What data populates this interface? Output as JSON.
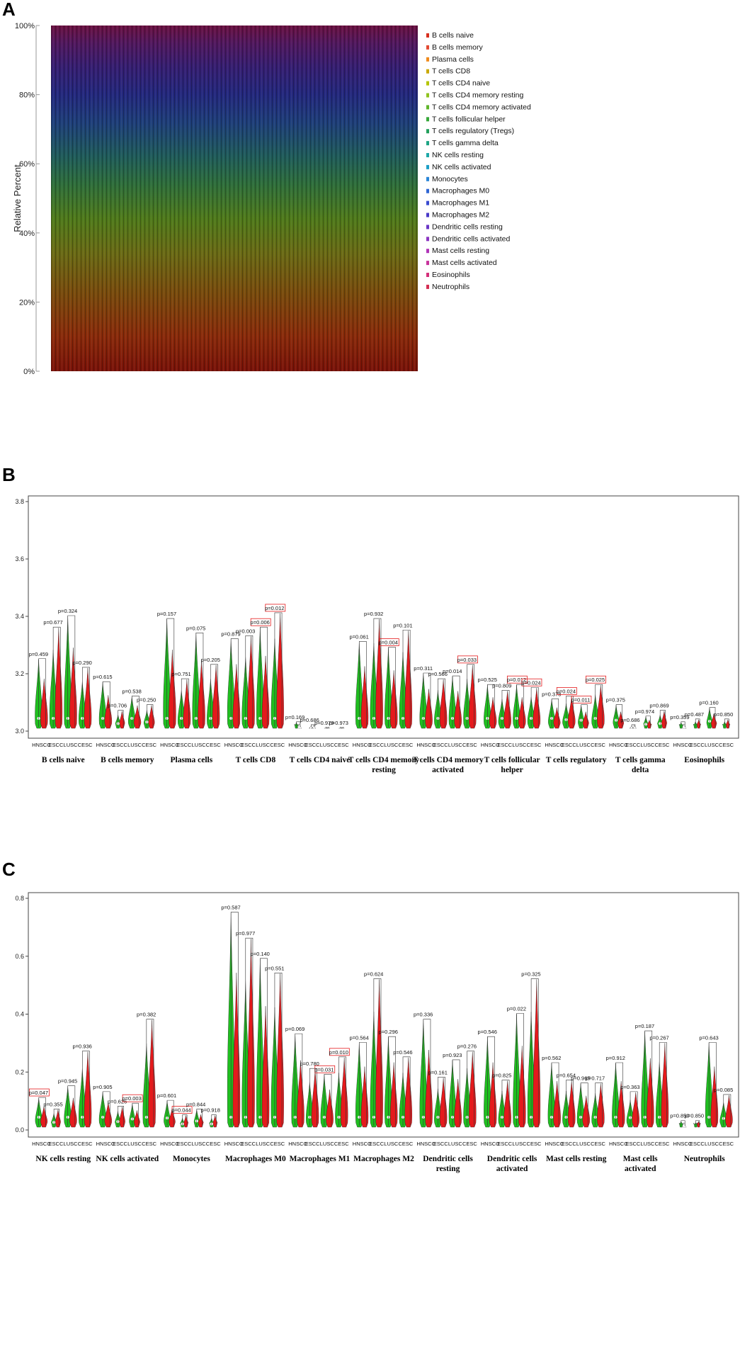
{
  "panels": {
    "a": "A",
    "b": "B",
    "c": "C"
  },
  "chart_data": [
    {
      "type": "area",
      "panel": "A",
      "ylabel": "Relative Percent",
      "yticks": [
        "0%",
        "20%",
        "40%",
        "60%",
        "80%",
        "100%"
      ],
      "ylim": [
        0,
        100
      ],
      "stacking": "percent",
      "legend_position": "right",
      "legend": [
        {
          "name": "B cells naive",
          "color": "#d7301f"
        },
        {
          "name": "B cells memory",
          "color": "#e34a33"
        },
        {
          "name": "Plasma cells",
          "color": "#f08a1c"
        },
        {
          "name": "T cells CD8",
          "color": "#c9a800"
        },
        {
          "name": "T cells CD4 naive",
          "color": "#b4c400"
        },
        {
          "name": "T cells CD4 memory resting",
          "color": "#8fc31f"
        },
        {
          "name": "T cells CD4 memory activated",
          "color": "#5fb62a"
        },
        {
          "name": "T cells follicular helper",
          "color": "#37a83a"
        },
        {
          "name": "T cells regulatory (Tregs)",
          "color": "#23a05c"
        },
        {
          "name": "T cells gamma delta",
          "color": "#1ea584"
        },
        {
          "name": "NK cells resting",
          "color": "#1fa8a8"
        },
        {
          "name": "NK cells activated",
          "color": "#1c9fc6"
        },
        {
          "name": "Monocytes",
          "color": "#2a86d8"
        },
        {
          "name": "Macrophages M0",
          "color": "#2f66d4"
        },
        {
          "name": "Macrophages M1",
          "color": "#3a4bd0"
        },
        {
          "name": "Macrophages M2",
          "color": "#4a3ac8"
        },
        {
          "name": "Dendritic cells resting",
          "color": "#6a36c6"
        },
        {
          "name": "Dendritic cells activated",
          "color": "#8c35c2"
        },
        {
          "name": "Mast cells resting",
          "color": "#b034b8"
        },
        {
          "name": "Mast cells activated",
          "color": "#c8339c"
        },
        {
          "name": "Eosinophils",
          "color": "#d4307a"
        },
        {
          "name": "Neutrophils",
          "color": "#d42e52"
        }
      ]
    },
    {
      "type": "violin",
      "panel": "B",
      "ylim": [
        3.0,
        3.8
      ],
      "yticks": [
        "3.0",
        "3.2",
        "3.4",
        "3.6",
        "3.8"
      ],
      "subgroups": [
        "HNSCC",
        "ESCC",
        "LUSC",
        "CESC"
      ],
      "colors": {
        "tumor": "#e41a1c",
        "normal": "#1fbf1f"
      },
      "groups": [
        {
          "name": "B cells naive",
          "pvalues": [
            "p=0.459",
            "p=0.677",
            "p=0.324",
            "p=0.290"
          ],
          "highlight": [
            false,
            false,
            false,
            false
          ],
          "peaks": [
            3.25,
            3.36,
            3.4,
            3.22
          ]
        },
        {
          "name": "B cells memory",
          "pvalues": [
            "p=0.615",
            "p=0.706",
            "p=0.538",
            "p=0.250"
          ],
          "highlight": [
            false,
            false,
            false,
            false
          ],
          "peaks": [
            3.17,
            3.07,
            3.12,
            3.09
          ]
        },
        {
          "name": "Plasma cells",
          "pvalues": [
            "p=0.157",
            "p=0.751",
            "p=0.075",
            "p=0.205"
          ],
          "highlight": [
            false,
            false,
            false,
            false
          ],
          "peaks": [
            3.39,
            3.18,
            3.34,
            3.23
          ]
        },
        {
          "name": "T cells CD8",
          "pvalues": [
            "p=0.879",
            "p=0.003",
            "p=0.006",
            "p=0.012"
          ],
          "highlight": [
            false,
            false,
            true,
            true
          ],
          "peaks": [
            3.32,
            3.33,
            3.36,
            3.41
          ]
        },
        {
          "name": "T cells CD4 naive",
          "pvalues": [
            "p=0.169",
            "p=0.686",
            "p=0.979",
            "p=0.973"
          ],
          "highlight": [
            false,
            false,
            false,
            false
          ],
          "peaks": [
            3.03,
            3.02,
            3.01,
            3.01
          ]
        },
        {
          "name": "T cells CD4 memory resting",
          "pvalues": [
            "p=0.061",
            "p=0.932",
            "p=0.004",
            "p=0.101"
          ],
          "highlight": [
            false,
            false,
            true,
            false
          ],
          "peaks": [
            3.31,
            3.39,
            3.29,
            3.35
          ]
        },
        {
          "name": "T cells CD4 memory activated",
          "pvalues": [
            "p=0.311",
            "p=0.566",
            "p=0.014",
            "p=0.033"
          ],
          "highlight": [
            false,
            false,
            false,
            true
          ],
          "peaks": [
            3.2,
            3.18,
            3.19,
            3.23
          ]
        },
        {
          "name": "T cells follicular helper",
          "pvalues": [
            "p=0.525",
            "p=0.809",
            "p=0.012",
            "p=0.024"
          ],
          "highlight": [
            false,
            false,
            true,
            true
          ],
          "peaks": [
            3.16,
            3.14,
            3.16,
            3.15
          ]
        },
        {
          "name": "T cells regulatory",
          "pvalues": [
            "p=0.378",
            "p=0.024",
            "p=0.011",
            "p=0.025"
          ],
          "highlight": [
            false,
            true,
            true,
            true
          ],
          "peaks": [
            3.11,
            3.12,
            3.09,
            3.16
          ]
        },
        {
          "name": "T cells gamma delta",
          "pvalues": [
            "p=0.375",
            "p=0.686",
            "p=0.974",
            "p=0.869"
          ],
          "highlight": [
            false,
            false,
            false,
            false
          ],
          "peaks": [
            3.09,
            3.02,
            3.05,
            3.07
          ]
        },
        {
          "name": "Eosinophils",
          "pvalues": [
            "p=0.359",
            "p=0.487",
            "p=0.160",
            "p=0.850"
          ],
          "highlight": [
            false,
            false,
            false,
            false
          ],
          "peaks": [
            3.03,
            3.04,
            3.08,
            3.04
          ]
        }
      ]
    },
    {
      "type": "violin",
      "panel": "C",
      "ylim": [
        0.0,
        0.8
      ],
      "yticks": [
        "0.0",
        "0.2",
        "0.4",
        "0.6",
        "0.8"
      ],
      "subgroups": [
        "HNSCC",
        "ESCC",
        "LUSC",
        "CESC"
      ],
      "colors": {
        "tumor": "#e41a1c",
        "normal": "#1fbf1f"
      },
      "groups": [
        {
          "name": "NK cells resting",
          "pvalues": [
            "p=0.047",
            "p=0.355",
            "p=0.945",
            "p=0.936"
          ],
          "highlight": [
            true,
            false,
            false,
            false
          ],
          "peaks": [
            0.11,
            0.07,
            0.15,
            0.27
          ]
        },
        {
          "name": "NK cells activated",
          "pvalues": [
            "p=0.905",
            "p=0.626",
            "p=0.003",
            "p=0.382"
          ],
          "highlight": [
            false,
            false,
            true,
            false
          ],
          "peaks": [
            0.13,
            0.08,
            0.09,
            0.38
          ]
        },
        {
          "name": "Monocytes",
          "pvalues": [
            "p=0.601",
            "p=0.044",
            "p=0.844",
            "p=0.918"
          ],
          "highlight": [
            false,
            true,
            false,
            false
          ],
          "peaks": [
            0.1,
            0.05,
            0.07,
            0.05
          ]
        },
        {
          "name": "Macrophages M0",
          "pvalues": [
            "p=0.587",
            "p=0.977",
            "p=0.140",
            "p=0.551"
          ],
          "highlight": [
            false,
            false,
            false,
            false
          ],
          "peaks": [
            0.75,
            0.66,
            0.59,
            0.54
          ]
        },
        {
          "name": "Macrophages M1",
          "pvalues": [
            "p=0.069",
            "p=0.780",
            "p=0.031",
            "p=0.010"
          ],
          "highlight": [
            false,
            false,
            true,
            true
          ],
          "peaks": [
            0.33,
            0.21,
            0.19,
            0.25
          ]
        },
        {
          "name": "Macrophages M2",
          "pvalues": [
            "p=0.564",
            "p=0.624",
            "p=0.296",
            "p=0.546"
          ],
          "highlight": [
            false,
            false,
            false,
            false
          ],
          "peaks": [
            0.3,
            0.52,
            0.32,
            0.25
          ]
        },
        {
          "name": "Dendritic cells resting",
          "pvalues": [
            "p=0.336",
            "p=0.161",
            "p=0.923",
            "p=0.276"
          ],
          "highlight": [
            false,
            false,
            false,
            false
          ],
          "peaks": [
            0.38,
            0.18,
            0.24,
            0.27
          ]
        },
        {
          "name": "Dendritic cells activated",
          "pvalues": [
            "p=0.546",
            "p=0.825",
            "p=0.022",
            "p=0.325"
          ],
          "highlight": [
            false,
            false,
            false,
            false
          ],
          "peaks": [
            0.32,
            0.17,
            0.4,
            0.52
          ]
        },
        {
          "name": "Mast cells resting",
          "pvalues": [
            "p=0.562",
            "p=0.654",
            "p=0.965",
            "p=0.717"
          ],
          "highlight": [
            false,
            false,
            false,
            false
          ],
          "peaks": [
            0.23,
            0.17,
            0.16,
            0.16
          ]
        },
        {
          "name": "Mast cells activated",
          "pvalues": [
            "p=0.912",
            "p=0.363",
            "p=0.187",
            "p=0.267"
          ],
          "highlight": [
            false,
            false,
            false,
            false
          ],
          "peaks": [
            0.23,
            0.13,
            0.34,
            0.3
          ]
        },
        {
          "name": "Neutrophils",
          "pvalues": [
            "p=0.850",
            "p=0.850",
            "p=0.643",
            "p=0.085"
          ],
          "highlight": [
            false,
            false,
            false,
            false
          ],
          "peaks": [
            0.03,
            0.03,
            0.3,
            0.12
          ]
        }
      ]
    }
  ]
}
